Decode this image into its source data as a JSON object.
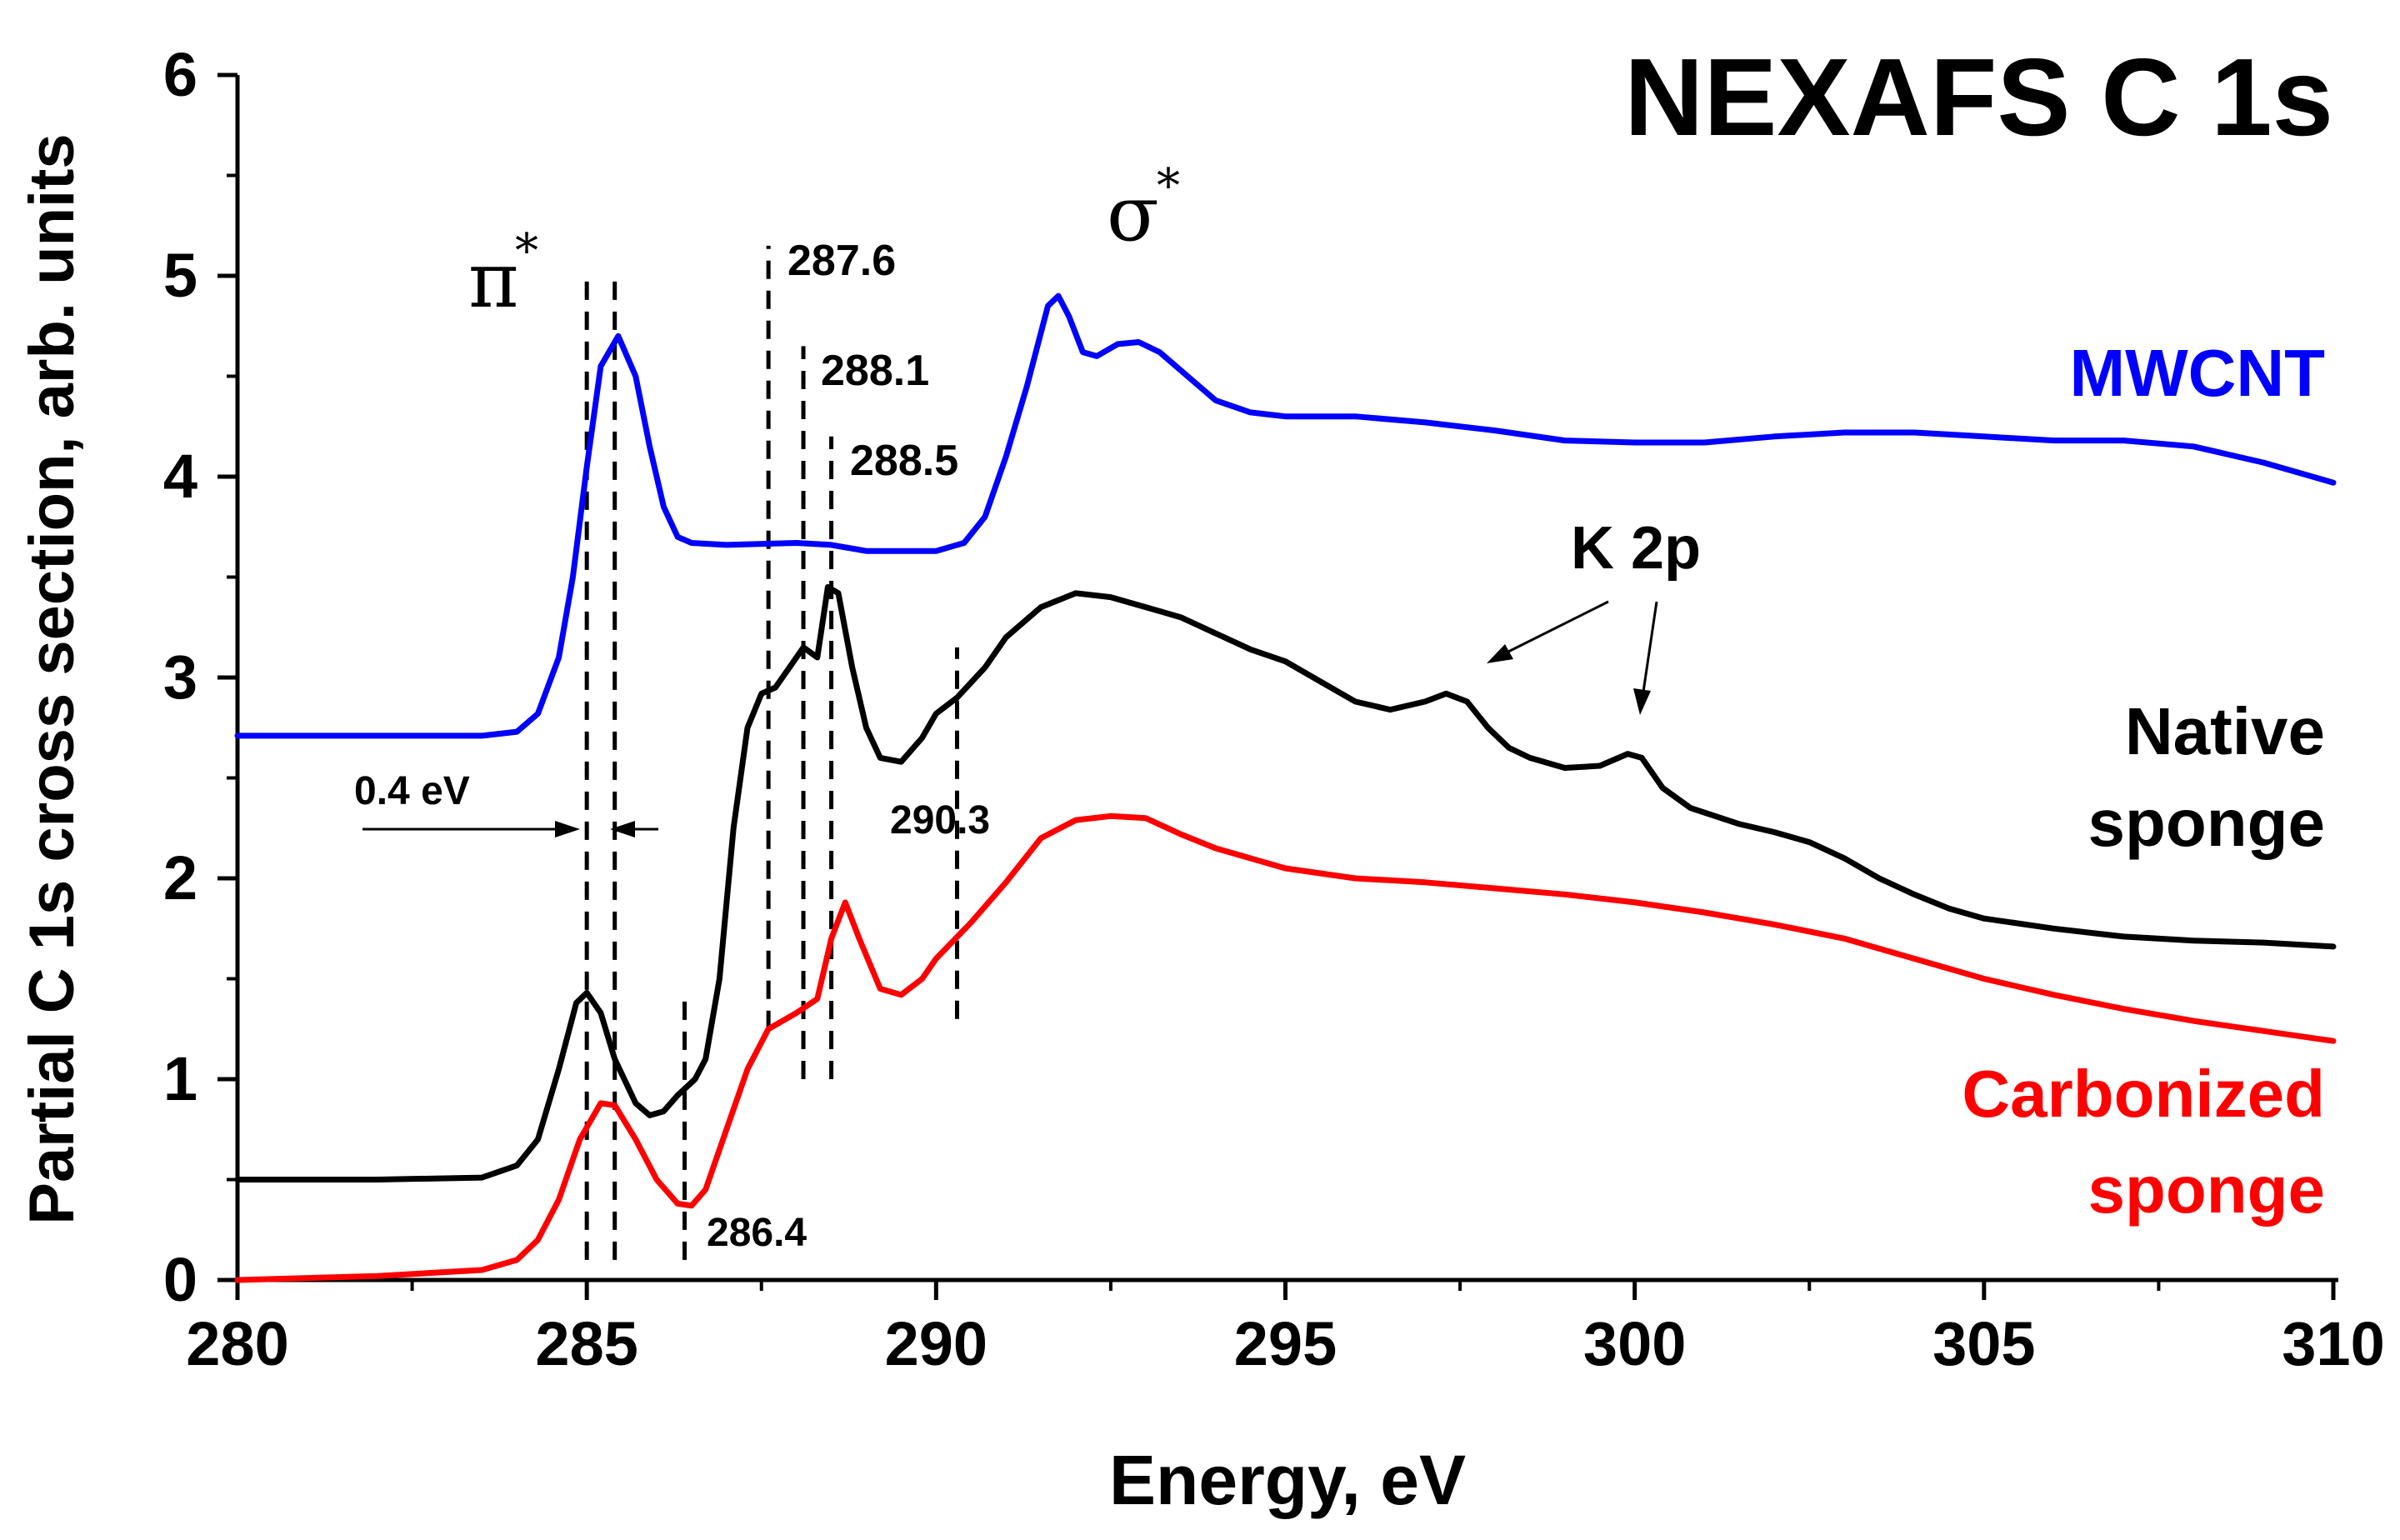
{
  "chart_data": {
    "type": "line",
    "title": "NEXAFS C 1s",
    "xlabel": "Energy, eV",
    "ylabel": "Partial C 1s cross section, arb. units",
    "xlim": [
      280,
      310
    ],
    "ylim": [
      0,
      6
    ],
    "x_ticks": [
      280,
      285,
      290,
      295,
      300,
      305,
      310
    ],
    "y_ticks": [
      0,
      1,
      2,
      3,
      4,
      5,
      6
    ],
    "x_tick_labels": [
      "280",
      "285",
      "290",
      "295",
      "300",
      "305",
      "310"
    ],
    "y_tick_labels": [
      "0",
      "1",
      "2",
      "3",
      "4",
      "5",
      "6"
    ],
    "series": [
      {
        "name": "MWCNT",
        "label_lines": [
          "MWCNT"
        ],
        "color": "#0000ff",
        "points": [
          [
            280,
            2.71
          ],
          [
            282,
            2.71
          ],
          [
            283.5,
            2.71
          ],
          [
            284.0,
            2.73
          ],
          [
            284.3,
            2.82
          ],
          [
            284.6,
            3.1
          ],
          [
            284.8,
            3.5
          ],
          [
            285.0,
            4.05
          ],
          [
            285.2,
            4.55
          ],
          [
            285.45,
            4.7
          ],
          [
            285.7,
            4.5
          ],
          [
            285.9,
            4.15
          ],
          [
            286.1,
            3.85
          ],
          [
            286.3,
            3.7
          ],
          [
            286.5,
            3.67
          ],
          [
            287.0,
            3.66
          ],
          [
            288.0,
            3.67
          ],
          [
            288.5,
            3.66
          ],
          [
            289.0,
            3.63
          ],
          [
            290.0,
            3.63
          ],
          [
            290.4,
            3.67
          ],
          [
            290.7,
            3.8
          ],
          [
            291.0,
            4.1
          ],
          [
            291.3,
            4.45
          ],
          [
            291.6,
            4.85
          ],
          [
            291.75,
            4.9
          ],
          [
            291.9,
            4.8
          ],
          [
            292.1,
            4.62
          ],
          [
            292.3,
            4.6
          ],
          [
            292.6,
            4.66
          ],
          [
            292.9,
            4.67
          ],
          [
            293.2,
            4.62
          ],
          [
            293.6,
            4.5
          ],
          [
            294.0,
            4.38
          ],
          [
            294.5,
            4.32
          ],
          [
            295.0,
            4.3
          ],
          [
            296.0,
            4.3
          ],
          [
            297.0,
            4.27
          ],
          [
            298.0,
            4.23
          ],
          [
            299.0,
            4.18
          ],
          [
            300.0,
            4.17
          ],
          [
            301.0,
            4.17
          ],
          [
            302.0,
            4.2
          ],
          [
            303.0,
            4.22
          ],
          [
            304.0,
            4.22
          ],
          [
            305.0,
            4.2
          ],
          [
            306.0,
            4.18
          ],
          [
            307.0,
            4.18
          ],
          [
            308.0,
            4.15
          ],
          [
            309.0,
            4.07
          ],
          [
            310.0,
            3.97
          ]
        ]
      },
      {
        "name": "Native sponge",
        "label_lines": [
          "Native",
          "sponge"
        ],
        "color": "#000000",
        "points": [
          [
            280,
            0.5
          ],
          [
            282,
            0.5
          ],
          [
            283.5,
            0.51
          ],
          [
            284.0,
            0.57
          ],
          [
            284.3,
            0.7
          ],
          [
            284.6,
            1.05
          ],
          [
            284.85,
            1.38
          ],
          [
            285.0,
            1.43
          ],
          [
            285.2,
            1.33
          ],
          [
            285.4,
            1.1
          ],
          [
            285.7,
            0.88
          ],
          [
            285.9,
            0.82
          ],
          [
            286.1,
            0.84
          ],
          [
            286.3,
            0.92
          ],
          [
            286.55,
            1.0
          ],
          [
            286.7,
            1.1
          ],
          [
            286.9,
            1.5
          ],
          [
            287.1,
            2.25
          ],
          [
            287.3,
            2.75
          ],
          [
            287.5,
            2.92
          ],
          [
            287.7,
            2.95
          ],
          [
            287.9,
            3.05
          ],
          [
            288.1,
            3.15
          ],
          [
            288.3,
            3.1
          ],
          [
            288.45,
            3.45
          ],
          [
            288.6,
            3.42
          ],
          [
            288.8,
            3.05
          ],
          [
            289.0,
            2.75
          ],
          [
            289.2,
            2.6
          ],
          [
            289.5,
            2.58
          ],
          [
            289.8,
            2.7
          ],
          [
            290.0,
            2.82
          ],
          [
            290.3,
            2.9
          ],
          [
            290.7,
            3.05
          ],
          [
            291.0,
            3.2
          ],
          [
            291.5,
            3.35
          ],
          [
            292.0,
            3.42
          ],
          [
            292.5,
            3.4
          ],
          [
            293.0,
            3.35
          ],
          [
            293.5,
            3.3
          ],
          [
            294.0,
            3.22
          ],
          [
            294.5,
            3.14
          ],
          [
            295.0,
            3.08
          ],
          [
            295.5,
            2.98
          ],
          [
            296.0,
            2.88
          ],
          [
            296.5,
            2.84
          ],
          [
            297.0,
            2.88
          ],
          [
            297.3,
            2.92
          ],
          [
            297.6,
            2.88
          ],
          [
            297.9,
            2.75
          ],
          [
            298.2,
            2.65
          ],
          [
            298.5,
            2.6
          ],
          [
            299.0,
            2.55
          ],
          [
            299.5,
            2.56
          ],
          [
            299.9,
            2.62
          ],
          [
            300.1,
            2.6
          ],
          [
            300.4,
            2.45
          ],
          [
            300.8,
            2.35
          ],
          [
            301.5,
            2.27
          ],
          [
            302.0,
            2.23
          ],
          [
            302.5,
            2.18
          ],
          [
            303.0,
            2.1
          ],
          [
            303.5,
            2.0
          ],
          [
            304.0,
            1.92
          ],
          [
            304.5,
            1.85
          ],
          [
            305.0,
            1.8
          ],
          [
            306.0,
            1.75
          ],
          [
            307.0,
            1.71
          ],
          [
            308.0,
            1.69
          ],
          [
            309.0,
            1.68
          ],
          [
            310.0,
            1.66
          ]
        ]
      },
      {
        "name": "Carbonized sponge",
        "label_lines": [
          "Carbonized",
          "sponge"
        ],
        "color": "#ff0000",
        "points": [
          [
            280,
            0.0
          ],
          [
            282,
            0.02
          ],
          [
            283.5,
            0.05
          ],
          [
            284.0,
            0.1
          ],
          [
            284.3,
            0.2
          ],
          [
            284.6,
            0.4
          ],
          [
            284.9,
            0.7
          ],
          [
            285.2,
            0.88
          ],
          [
            285.4,
            0.87
          ],
          [
            285.7,
            0.7
          ],
          [
            286.0,
            0.5
          ],
          [
            286.3,
            0.38
          ],
          [
            286.5,
            0.37
          ],
          [
            286.7,
            0.45
          ],
          [
            287.0,
            0.75
          ],
          [
            287.3,
            1.05
          ],
          [
            287.6,
            1.25
          ],
          [
            288.0,
            1.33
          ],
          [
            288.3,
            1.4
          ],
          [
            288.5,
            1.7
          ],
          [
            288.7,
            1.88
          ],
          [
            288.9,
            1.7
          ],
          [
            289.2,
            1.45
          ],
          [
            289.5,
            1.42
          ],
          [
            289.8,
            1.5
          ],
          [
            290.0,
            1.6
          ],
          [
            290.5,
            1.78
          ],
          [
            291.0,
            1.98
          ],
          [
            291.5,
            2.2
          ],
          [
            292.0,
            2.29
          ],
          [
            292.5,
            2.31
          ],
          [
            293.0,
            2.3
          ],
          [
            293.5,
            2.22
          ],
          [
            294.0,
            2.15
          ],
          [
            295.0,
            2.05
          ],
          [
            296.0,
            2.0
          ],
          [
            297.0,
            1.98
          ],
          [
            298.0,
            1.95
          ],
          [
            299.0,
            1.92
          ],
          [
            300.0,
            1.88
          ],
          [
            301.0,
            1.83
          ],
          [
            302.0,
            1.77
          ],
          [
            303.0,
            1.7
          ],
          [
            304.0,
            1.6
          ],
          [
            305.0,
            1.5
          ],
          [
            306.0,
            1.42
          ],
          [
            307.0,
            1.35
          ],
          [
            308.0,
            1.29
          ],
          [
            309.0,
            1.24
          ],
          [
            310.0,
            1.19
          ]
        ]
      }
    ],
    "reference_lines": [
      {
        "x": 285.0,
        "y_from": 0.1,
        "y_to": 5.0
      },
      {
        "x": 285.4,
        "y_from": 0.1,
        "y_to": 5.0
      },
      {
        "x": 286.4,
        "y_from": 0.1,
        "y_to": 1.4
      },
      {
        "x": 287.6,
        "y_from": 1.25,
        "y_to": 5.15
      },
      {
        "x": 288.1,
        "y_from": 1.0,
        "y_to": 4.65
      },
      {
        "x": 288.5,
        "y_from": 1.0,
        "y_to": 4.2
      },
      {
        "x": 290.3,
        "y_from": 1.3,
        "y_to": 3.15
      }
    ],
    "annotations": {
      "pi_label": "π",
      "sigma_label": "σ",
      "star": "*",
      "peak_287_6": "287.6",
      "peak_288_1": "288.1",
      "peak_288_5": "288.5",
      "peak_290_3": "290.3",
      "peak_286_4": "286.4",
      "shift": "0.4 eV",
      "k2p": "K 2p"
    }
  }
}
